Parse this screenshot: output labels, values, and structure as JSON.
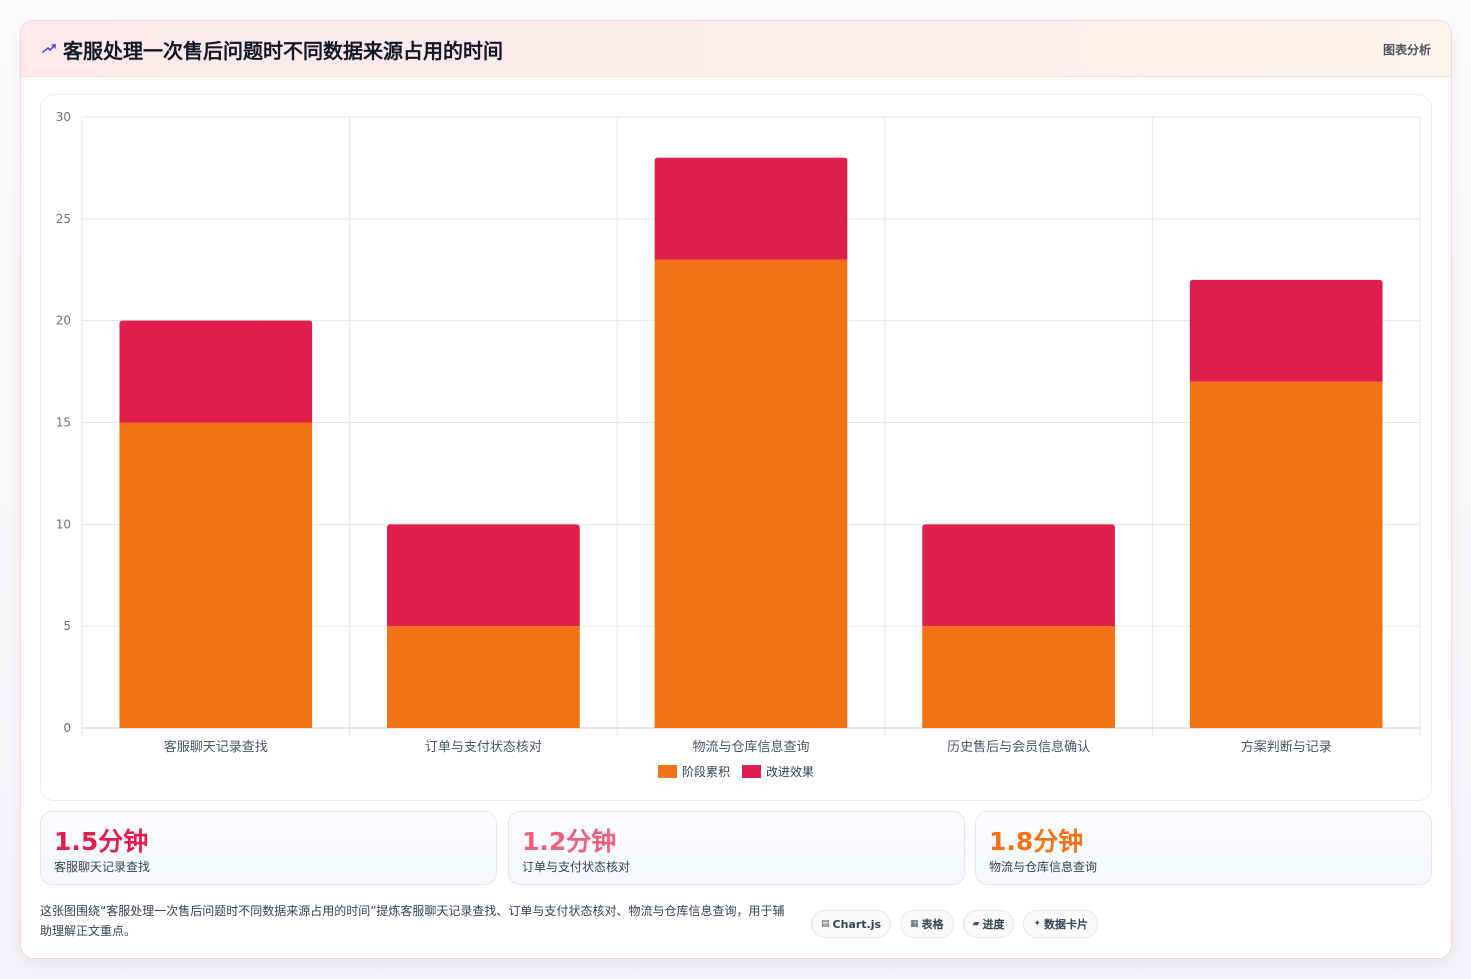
{
  "header": {
    "title": "客服处理一次售后问题时不同数据来源占用的时间",
    "tag": "图表分析",
    "icon": "sparkle-icon"
  },
  "chart_data": {
    "type": "bar",
    "stacked": true,
    "categories": [
      "客服聊天记录查找",
      "订单与支付状态核对",
      "物流与仓库信息查询",
      "历史售后与会员信息确认",
      "方案判断与记录"
    ],
    "series": [
      {
        "name": "阶段累积",
        "values": [
          15,
          5,
          23,
          5,
          17
        ],
        "color": "#f47216"
      },
      {
        "name": "改进效果",
        "values": [
          5,
          5,
          5,
          5,
          5
        ],
        "color": "#e01e4b"
      }
    ],
    "ylim": [
      0,
      30
    ],
    "yticks": [
      0,
      5,
      10,
      15,
      20,
      25,
      30
    ],
    "grid": true,
    "legend_position": "bottom"
  },
  "stats": [
    {
      "value": "1.5分钟",
      "label": "客服聊天记录查找",
      "color": "#e01e4b"
    },
    {
      "value": "1.2分钟",
      "label": "订单与支付状态核对",
      "color": "#f0607e"
    },
    {
      "value": "1.8分钟",
      "label": "物流与仓库信息查询",
      "color": "#f47216"
    }
  ],
  "footer": {
    "text": "这张图围绕“客服处理一次售后问题时不同数据来源占用的时间”提炼客服聊天记录查找、订单与支付状态核对、物流与仓库信息查询，用于辅助理解正文重点。",
    "chips": [
      {
        "icon": "▤",
        "label": "Chart.js"
      },
      {
        "icon": "▦",
        "label": "表格"
      },
      {
        "icon": "▰",
        "label": "进度"
      },
      {
        "icon": "✦",
        "label": "数据卡片"
      }
    ]
  }
}
